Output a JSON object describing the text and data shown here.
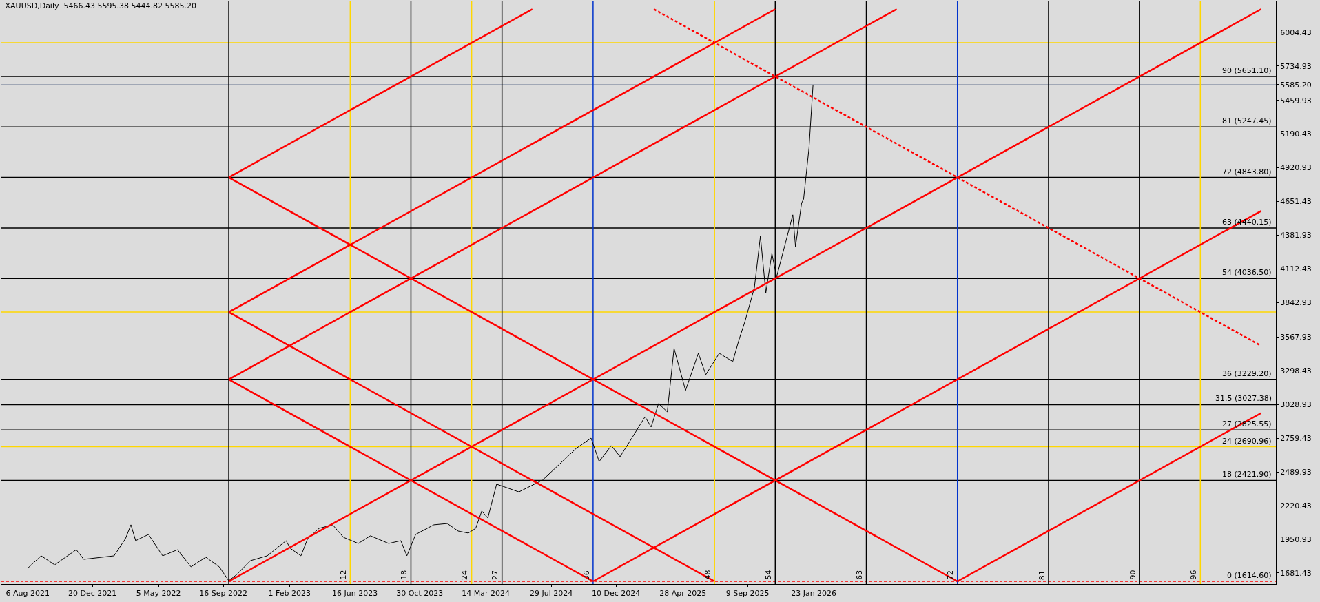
{
  "chart_data": {
    "type": "line",
    "title": "XAUUSD,Daily  5466.43 5595.38 5444.82 5585.20",
    "xlim": [
      "2021-06-14",
      "2028-09-08"
    ],
    "xticks": [
      {
        "value": "2021-08-06",
        "label": "6 Aug 2021"
      },
      {
        "value": "2021-12-20",
        "label": "20 Dec 2021"
      },
      {
        "value": "2022-05-05",
        "label": "5 May 2022"
      },
      {
        "value": "2022-09-16",
        "label": "16 Sep 2022"
      },
      {
        "value": "2023-02-01",
        "label": "1 Feb 2023"
      },
      {
        "value": "2023-06-16",
        "label": "16 Jun 2023"
      },
      {
        "value": "2023-10-30",
        "label": "30 Oct 2023"
      },
      {
        "value": "2024-03-14",
        "label": "14 Mar 2024"
      },
      {
        "value": "2024-07-29",
        "label": "29 Jul 2024"
      },
      {
        "value": "2024-12-10",
        "label": "10 Dec 2024"
      },
      {
        "value": "2025-04-28",
        "label": "28 Apr 2025"
      },
      {
        "value": "2025-09-09",
        "label": "9 Sep 2025"
      },
      {
        "value": "2026-01-23",
        "label": "23 Jan 2026"
      }
    ],
    "ylim": [
      1593,
      6251
    ],
    "yticks": [
      1681.43,
      1950.93,
      2220.43,
      2489.93,
      2759.43,
      3028.93,
      3298.43,
      3567.93,
      3842.93,
      4112.43,
      4381.93,
      4651.43,
      4920.93,
      5190.43,
      5459.93,
      {
        "value": 5585.2,
        "label": "5585.20"
      },
      5734.93,
      6004.43
    ],
    "grid": false,
    "series": [
      {
        "color": "#000000",
        "x": [
          "2021-08-06",
          "2021-09-03",
          "2021-10-01",
          "2021-11-16",
          "2021-12-01",
          "2022-02-02",
          "2022-02-25",
          "2022-03-09",
          "2022-03-18",
          "2022-04-14",
          "2022-05-13",
          "2022-06-14",
          "2022-07-12",
          "2022-08-11",
          "2022-09-08",
          "2022-09-28",
          "2022-10-14",
          "2022-11-11",
          "2022-12-16",
          "2023-01-25",
          "2023-02-02",
          "2023-02-24",
          "2023-03-10",
          "2023-04-04",
          "2023-05-02",
          "2023-05-24",
          "2023-06-23",
          "2023-07-19",
          "2023-08-25",
          "2023-09-20",
          "2023-10-03",
          "2023-10-20",
          "2023-11-28",
          "2023-12-26",
          "2024-01-17",
          "2024-02-07",
          "2024-02-22",
          "2024-03-06",
          "2024-03-19",
          "2024-04-05",
          "2024-05-22",
          "2024-07-10",
          "2024-09-18",
          "2024-10-18",
          "2024-11-05",
          "2024-11-29",
          "2024-12-18",
          "2025-01-08",
          "2025-02-07",
          "2025-02-20",
          "2025-03-07",
          "2025-03-26",
          "2025-04-09",
          "2025-05-02",
          "2025-05-29",
          "2025-06-13",
          "2025-07-11",
          "2025-08-08",
          "2025-08-21",
          "2025-09-03",
          "2025-09-23",
          "2025-10-06",
          "2025-10-16",
          "2025-10-29",
          "2025-11-07",
          "2025-12-11",
          "2025-12-17",
          "2025-12-30",
          "2026-01-02",
          "2026-01-14",
          "2026-01-20",
          "2026-01-22"
        ],
        "values": [
          1720,
          1819,
          1747,
          1868,
          1791,
          1819,
          1957,
          2067,
          1940,
          1990,
          1819,
          1868,
          1731,
          1808,
          1731,
          1620,
          1670,
          1780,
          1819,
          1940,
          1880,
          1819,
          1957,
          2039,
          2067,
          1967,
          1918,
          1979,
          1918,
          1940,
          1819,
          1990,
          2067,
          2077,
          2017,
          2001,
          2039,
          2177,
          2122,
          2392,
          2330,
          2424,
          2678,
          2760,
          2573,
          2700,
          2612,
          2739,
          2931,
          2849,
          3036,
          2970,
          3477,
          3141,
          3438,
          3267,
          3438,
          3372,
          3542,
          3691,
          3961,
          4374,
          3922,
          4236,
          4049,
          4545,
          4291,
          4638,
          4671,
          5079,
          5415,
          5585
        ]
      },
      {
        "color": "#ff0000",
        "x": [
          "2022-09-28",
          "2024-06-19"
        ],
        "values": [
          4844,
          6189
        ]
      },
      {
        "color": "#ff0000",
        "x": [
          "2022-09-28",
          "2025-11-05"
        ],
        "values": [
          3767,
          6189
        ]
      },
      {
        "color": "#ff0000",
        "x": [
          "2022-09-28",
          "2026-07-15"
        ],
        "values": [
          3229,
          6189
        ]
      },
      {
        "color": "#ff0000",
        "x": [
          "2022-09-28",
          "2028-08-09"
        ],
        "values": [
          1615,
          6189
        ]
      },
      {
        "color": "#ff0000",
        "x": [
          "2024-10-23",
          "2028-08-09"
        ],
        "values": [
          1615,
          4575
        ]
      },
      {
        "color": "#ff0000",
        "x": [
          "2026-11-18",
          "2028-08-09"
        ],
        "values": [
          1615,
          2960
        ]
      },
      {
        "color": "#ff0000",
        "x": [
          "2022-09-28",
          "2026-11-18"
        ],
        "values": [
          4844,
          1615
        ]
      },
      {
        "color": "#ff0000",
        "x": [
          "2022-09-28",
          "2025-07-02"
        ],
        "values": [
          3767,
          1615
        ]
      },
      {
        "color": "#ff0000",
        "x": [
          "2022-09-28",
          "2024-10-23"
        ],
        "values": [
          3229,
          1615
        ]
      },
      {
        "color": "#ff0000",
        "line_style": "dashed",
        "x": [
          "2025-02-26",
          "2028-08-09"
        ],
        "values": [
          6189,
          3498
        ]
      }
    ],
    "ref_lines": [
      {
        "axis": "y",
        "value": 1614.6,
        "label": "0 (1614.60)",
        "color": "#ff0000",
        "line_style": "dashed"
      },
      {
        "axis": "y",
        "value": 2421.9,
        "label": "18 (2421.90)",
        "color": "#000000"
      },
      {
        "axis": "y",
        "value": 2690.96,
        "label": "24 (2690.96)",
        "color": "#ffd700"
      },
      {
        "axis": "y",
        "value": 2825.55,
        "label": "27 (2825.55)",
        "color": "#000000"
      },
      {
        "axis": "y",
        "value": 3027.38,
        "label": "31.5 (3027.38)",
        "color": "#000000"
      },
      {
        "axis": "y",
        "value": 3229.2,
        "label": "36 (3229.20)",
        "color": "#000000"
      },
      {
        "axis": "y",
        "value": 3767.4,
        "color": "#ffd700"
      },
      {
        "axis": "y",
        "value": 4036.5,
        "label": "54 (4036.50)",
        "color": "#000000"
      },
      {
        "axis": "y",
        "value": 4440.15,
        "label": "63 (4440.15)",
        "color": "#000000"
      },
      {
        "axis": "y",
        "value": 4843.8,
        "label": "72 (4843.80)",
        "color": "#000000"
      },
      {
        "axis": "y",
        "value": 5247.45,
        "label": "81 (5247.45)",
        "color": "#000000"
      },
      {
        "axis": "y",
        "value": 5585.2,
        "color": "#8c96a8"
      },
      {
        "axis": "y",
        "value": 5651.1,
        "label": "90 (5651.10)",
        "color": "#000000"
      },
      {
        "axis": "y",
        "value": 5920.2,
        "color": "#ffd700"
      },
      {
        "axis": "x",
        "value": "2022-09-28",
        "color": "#000000"
      },
      {
        "axis": "x",
        "value": "2023-06-07",
        "label": "12",
        "color": "#ffd700"
      },
      {
        "axis": "x",
        "value": "2023-10-11",
        "label": "18",
        "color": "#000000"
      },
      {
        "axis": "x",
        "value": "2024-02-14",
        "label": "24",
        "color": "#ffd700"
      },
      {
        "axis": "x",
        "value": "2024-04-17",
        "label": "27",
        "color": "#000000"
      },
      {
        "axis": "x",
        "value": "2024-10-23",
        "label": "36",
        "color": "#0033cc"
      },
      {
        "axis": "x",
        "value": "2025-07-02",
        "label": "48",
        "color": "#ffd700"
      },
      {
        "axis": "x",
        "value": "2025-11-05",
        "label": "54",
        "color": "#000000"
      },
      {
        "axis": "x",
        "value": "2026-05-13",
        "label": "63",
        "color": "#000000"
      },
      {
        "axis": "x",
        "value": "2026-11-18",
        "label": "72",
        "color": "#0033cc"
      },
      {
        "axis": "x",
        "value": "2027-05-26",
        "label": "81",
        "color": "#000000"
      },
      {
        "axis": "x",
        "value": "2027-12-01",
        "label": "90",
        "color": "#000000"
      },
      {
        "axis": "x",
        "value": "2028-04-05",
        "label": "96",
        "color": "#ffd700"
      }
    ]
  }
}
